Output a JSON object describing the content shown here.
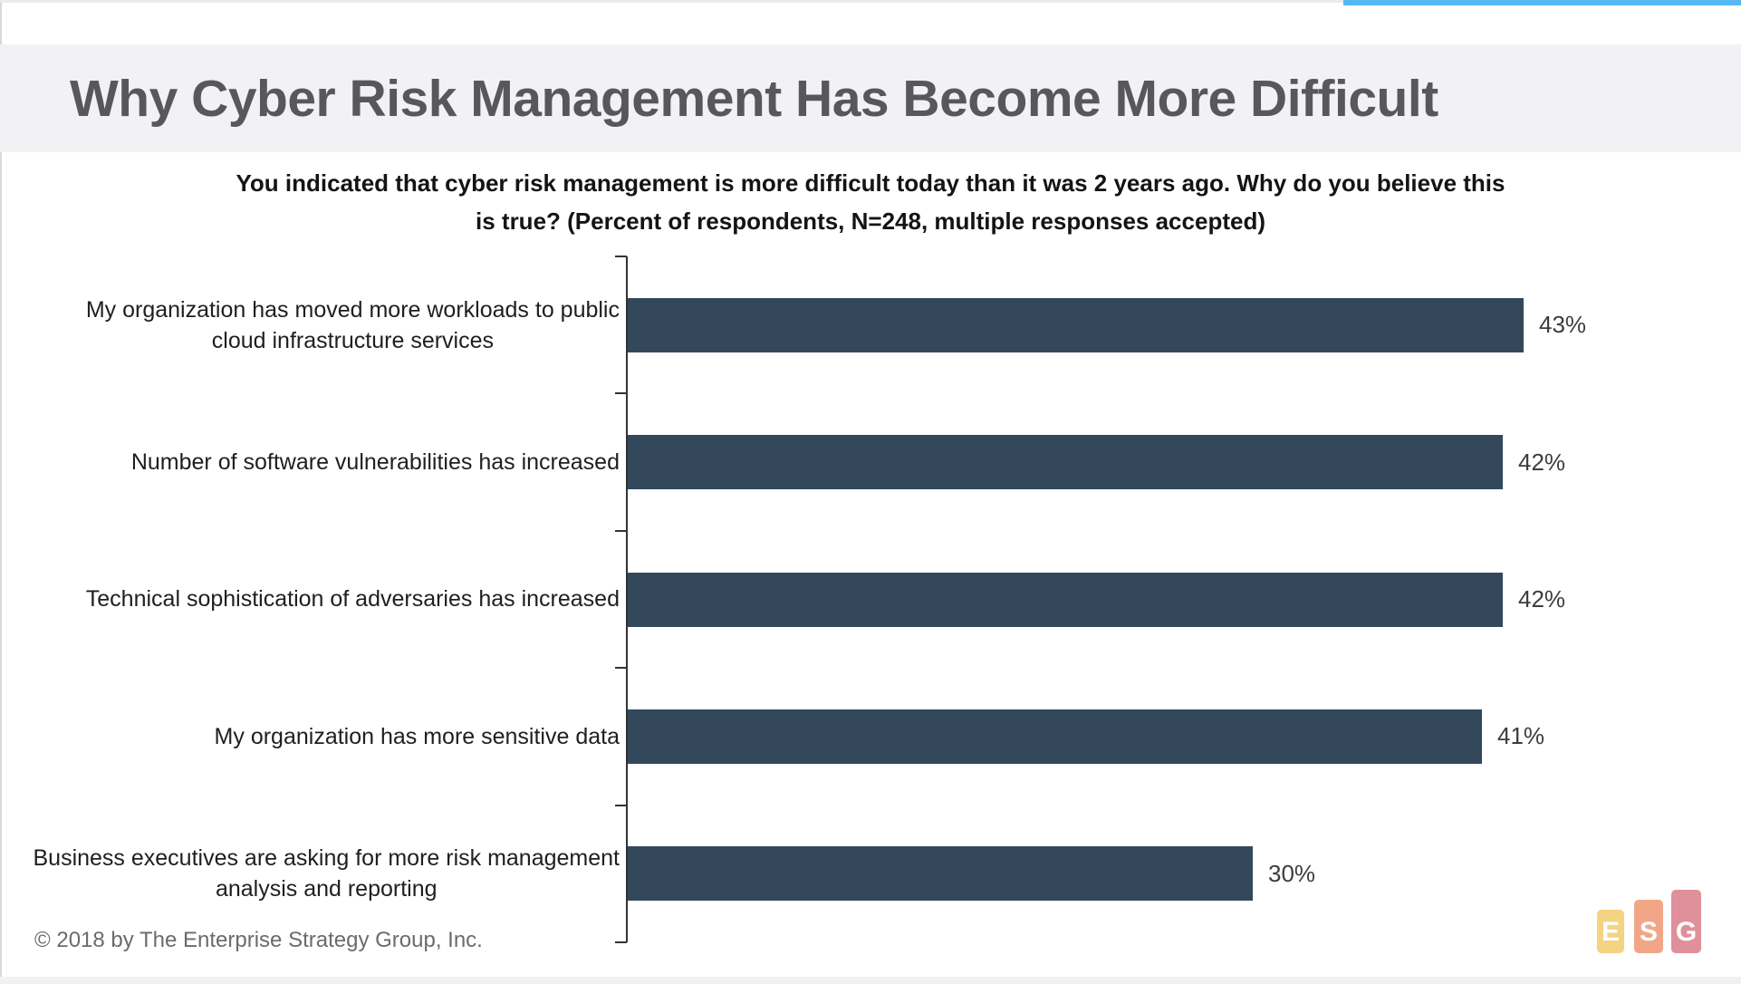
{
  "page": {
    "title": "Why Cyber Risk Management Has Become More Difficult",
    "subtitle_line1": "You indicated that cyber risk management is more difficult today than it was 2 years ago.  Why do you believe this",
    "subtitle_line2": "is true? (Percent of respondents, N=248, multiple responses accepted)",
    "footer": "© 2018 by The Enterprise Strategy Group, Inc.",
    "accent_bar_color": "#56b7f1"
  },
  "chart_data": {
    "type": "bar",
    "orientation": "horizontal",
    "title": "You indicated that cyber risk management is more difficult today than it was 2 years ago.  Why do you believe this is true? (Percent of respondents, N=248, multiple responses accepted)",
    "categories": [
      "My organization has moved more workloads to public cloud infrastructure services",
      "Number of software vulnerabilities has increased",
      "Technical sophistication of adversaries has increased",
      "My organization has more sensitive data",
      "Business executives are asking for more risk management analysis and reporting"
    ],
    "category_lines": [
      [
        "My organization has moved more workloads to public",
        "cloud infrastructure services"
      ],
      [
        "Number of software vulnerabilities has increased"
      ],
      [
        "Technical sophistication of adversaries has increased"
      ],
      [
        "My organization has more sensitive data"
      ],
      [
        "Business executives are asking for more risk management",
        "analysis and reporting"
      ]
    ],
    "values": [
      43,
      42,
      42,
      41,
      30
    ],
    "value_labels": [
      "43%",
      "42%",
      "42%",
      "41%",
      "30%"
    ],
    "bar_color": "#34485c",
    "xlim": [
      0,
      50
    ],
    "x_axis_labels_visible": false,
    "grid": false,
    "legend": false,
    "data_labels": "outside-end"
  },
  "logo": {
    "letters": [
      "E",
      "S",
      "G"
    ],
    "colors": [
      "#f4d382",
      "#f1a787",
      "#df909b"
    ]
  }
}
